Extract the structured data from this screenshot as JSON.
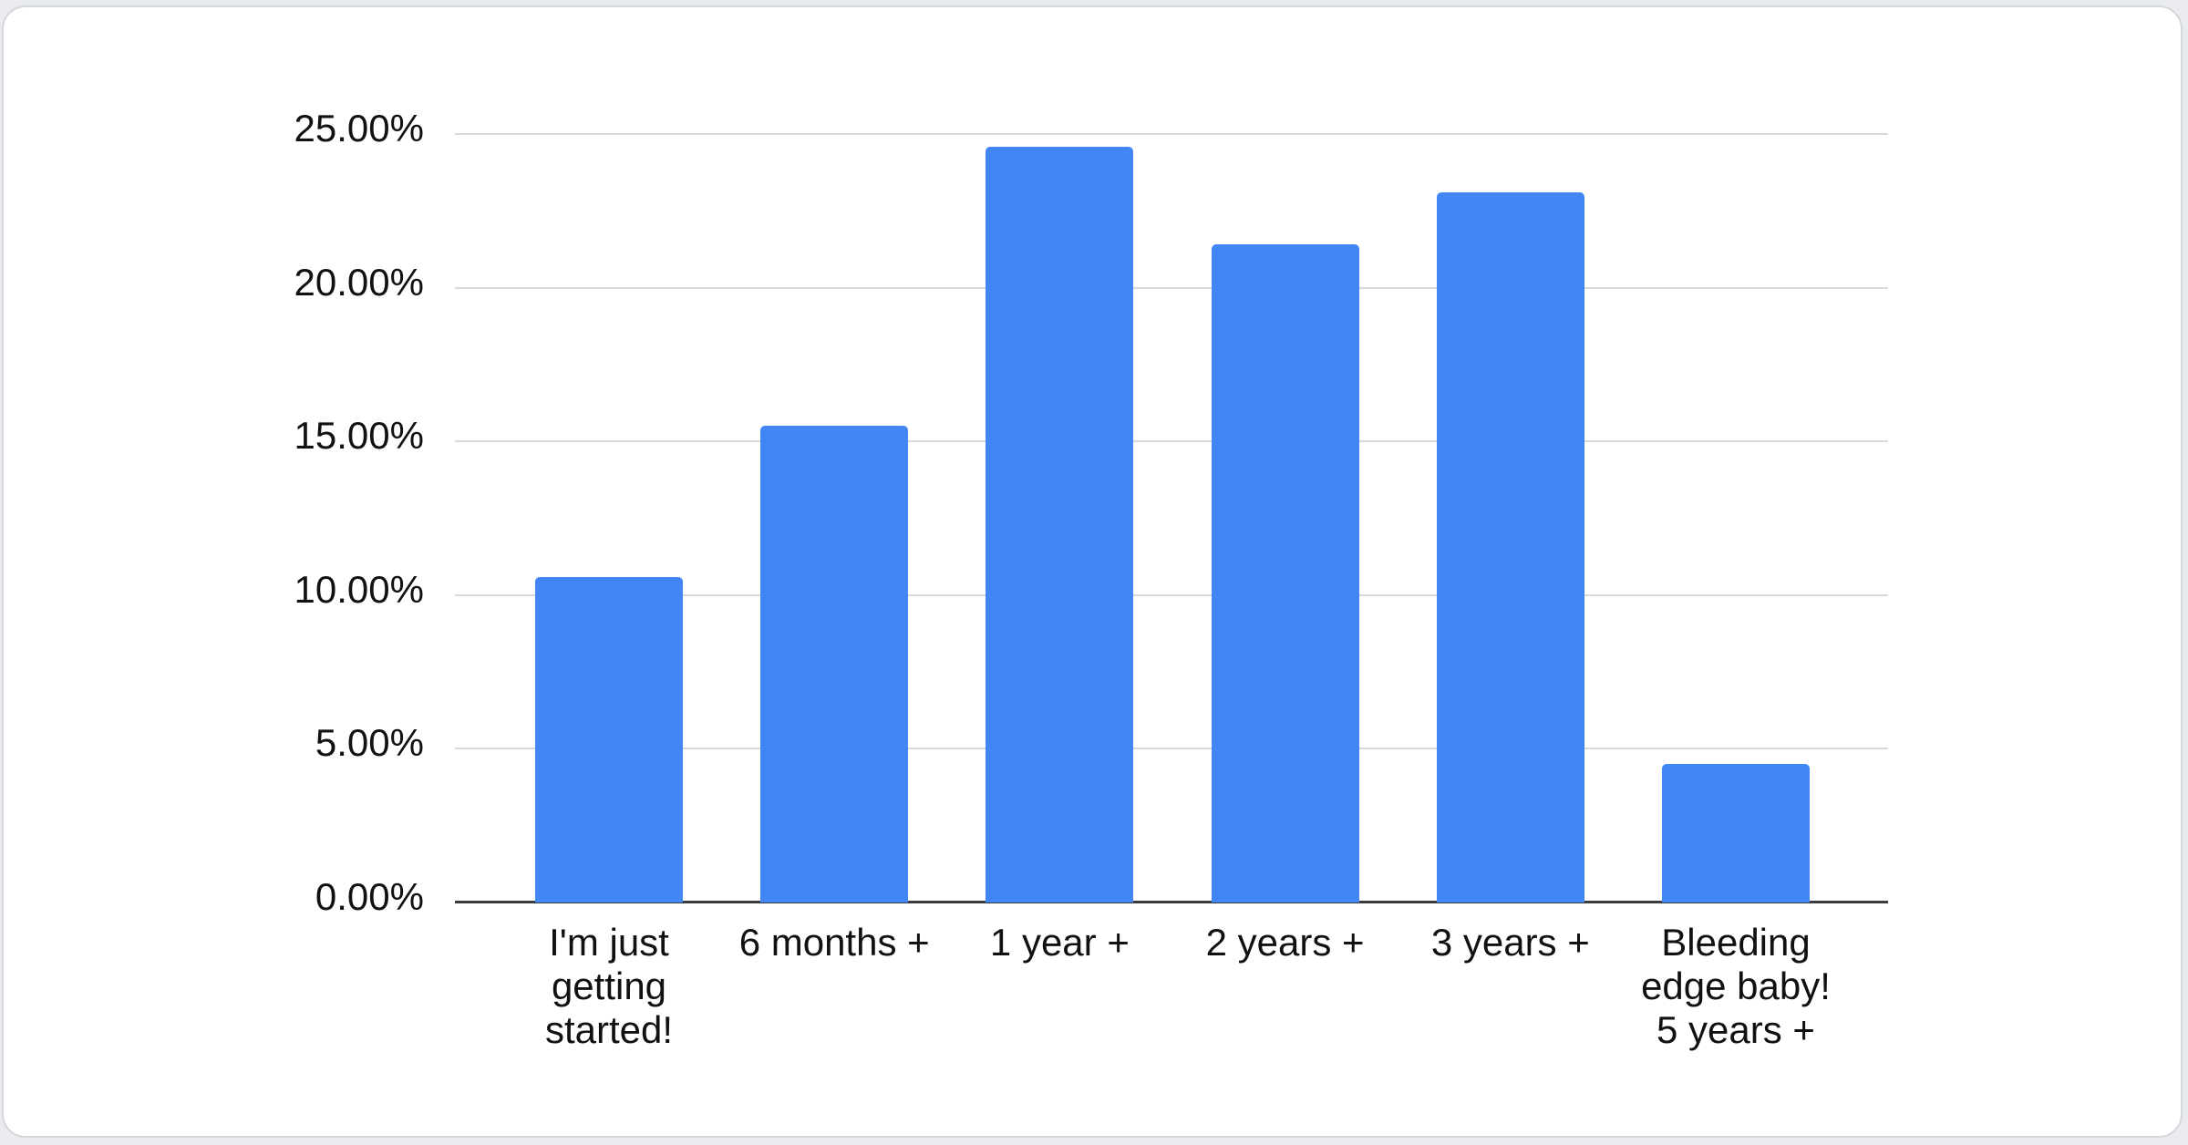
{
  "page": {
    "background_color": "#e9ebee",
    "card_background_color": "#ffffff",
    "card_border_color": "#d4d7db"
  },
  "chart_data": {
    "type": "bar",
    "title": "",
    "xlabel": "",
    "ylabel": "",
    "categories": [
      "I'm just\ngetting\nstarted!",
      "6 months +",
      "1 year +",
      "2 years +",
      "3 years +",
      "Bleeding\nedge baby!\n5 years +"
    ],
    "values": [
      10.6,
      15.5,
      24.6,
      21.4,
      23.1,
      4.5
    ],
    "value_unit": "%",
    "ylim": [
      0,
      25
    ],
    "ytick_values": [
      0,
      5,
      10,
      15,
      20,
      25
    ],
    "ytick_labels": [
      "0.00%",
      "5.00%",
      "10.00%",
      "15.00%",
      "20.00%",
      "25.00%"
    ],
    "grid": true,
    "legend": "none",
    "bar_color": "#4285f4",
    "gridline_color": "#d9d9d9",
    "axis_line_color": "#3c3c3c",
    "text_color": "#111111"
  }
}
